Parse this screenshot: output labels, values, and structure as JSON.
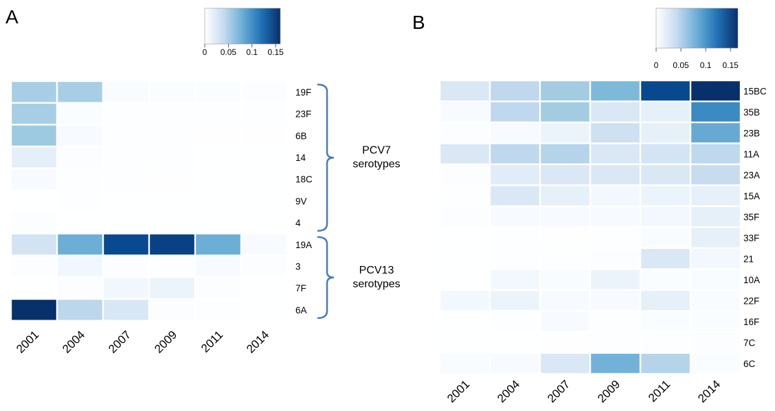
{
  "chart_data": [
    {
      "type": "heatmap",
      "panel": "A",
      "columns": [
        "2001",
        "2004",
        "2007",
        "2009",
        "2011",
        "2014"
      ],
      "rows": [
        "19F",
        "23F",
        "6B",
        "14",
        "18C",
        "9V",
        "4",
        "19A",
        "3",
        "7F",
        "6A"
      ],
      "values": [
        [
          0.075,
          0.075,
          0.015,
          0.012,
          0.012,
          0.01
        ],
        [
          0.075,
          0.012,
          0.007,
          0.004,
          0.004,
          0.004
        ],
        [
          0.08,
          0.02,
          0.005,
          0.004,
          0.003,
          0.003
        ],
        [
          0.035,
          0.008,
          0.004,
          0.004,
          0.002,
          0.002
        ],
        [
          0.02,
          0.005,
          0.004,
          0.003,
          0.002,
          0.002
        ],
        [
          0.002,
          0.006,
          0.002,
          0.002,
          0.002,
          0.002
        ],
        [
          0.01,
          0.002,
          0.002,
          0.002,
          0.002,
          0.002
        ],
        [
          0.05,
          0.1,
          0.145,
          0.15,
          0.1,
          0.02
        ],
        [
          0.01,
          0.025,
          0.01,
          0.005,
          0.02,
          0.01
        ],
        [
          0.002,
          0.008,
          0.025,
          0.03,
          0.008,
          0.002
        ],
        [
          0.16,
          0.065,
          0.045,
          0.01,
          0.005,
          0.002
        ]
      ],
      "color_scale": {
        "low": "#ffffff",
        "high": "#08306b",
        "ticks": [
          "0",
          "0.05",
          "0.1",
          "0.15"
        ],
        "range": [
          0,
          0.16
        ]
      },
      "groups": [
        {
          "label_lines": [
            "PCV7",
            "serotypes"
          ],
          "rows": [
            "19F",
            "4"
          ]
        },
        {
          "label_lines": [
            "PCV13",
            "serotypes"
          ],
          "rows": [
            "19A",
            "6A"
          ]
        }
      ]
    },
    {
      "type": "heatmap",
      "panel": "B",
      "columns": [
        "2001",
        "2004",
        "2007",
        "2009",
        "2011",
        "2014"
      ],
      "rows": [
        "15BC",
        "35B",
        "23B",
        "11A",
        "23A",
        "15A",
        "35F",
        "33F",
        "21",
        "10A",
        "22F",
        "16F",
        "7C",
        "6C"
      ],
      "values": [
        [
          0.045,
          0.065,
          0.08,
          0.095,
          0.15,
          0.165
        ],
        [
          0.02,
          0.065,
          0.08,
          0.045,
          0.035,
          0.12
        ],
        [
          0.01,
          0.02,
          0.03,
          0.055,
          0.035,
          0.105
        ],
        [
          0.045,
          0.065,
          0.07,
          0.045,
          0.05,
          0.065
        ],
        [
          0.01,
          0.04,
          0.045,
          0.045,
          0.045,
          0.06
        ],
        [
          0.007,
          0.045,
          0.035,
          0.025,
          0.03,
          0.035
        ],
        [
          0.01,
          0.02,
          0.02,
          0.02,
          0.025,
          0.035
        ],
        [
          0.002,
          0.007,
          0.003,
          0.004,
          0.015,
          0.035
        ],
        [
          0.002,
          0.004,
          0.005,
          0.01,
          0.045,
          0.025
        ],
        [
          0.002,
          0.025,
          0.015,
          0.03,
          0.012,
          0.015
        ],
        [
          0.025,
          0.03,
          0.02,
          0.02,
          0.035,
          0.015
        ],
        [
          0.002,
          0.007,
          0.02,
          0.005,
          0.012,
          0.012
        ],
        [
          0.002,
          0.002,
          0.003,
          0.004,
          0.007,
          0.01
        ],
        [
          0.015,
          0.02,
          0.045,
          0.1,
          0.07,
          0.012
        ]
      ],
      "color_scale": {
        "low": "#ffffff",
        "high": "#08306b",
        "ticks": [
          "0",
          "0.05",
          "0.1",
          "0.15"
        ],
        "range": [
          0,
          0.165
        ]
      }
    }
  ]
}
